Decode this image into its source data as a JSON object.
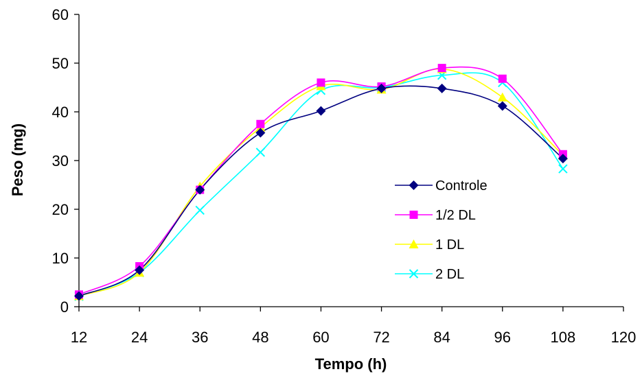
{
  "chart_data": {
    "type": "line",
    "title": "",
    "xlabel": "Tempo (h)",
    "ylabel": "Peso (mg)",
    "xlim": [
      12,
      120
    ],
    "ylim": [
      0,
      60
    ],
    "xticks": [
      12,
      24,
      36,
      48,
      60,
      72,
      84,
      96,
      108,
      120
    ],
    "yticks": [
      0,
      10,
      20,
      30,
      40,
      50,
      60
    ],
    "grid": false,
    "legend_position": "right",
    "x": [
      12,
      24,
      36,
      48,
      60,
      72,
      84,
      96,
      108
    ],
    "series": [
      {
        "name": "Controle",
        "color": "#000080",
        "marker": "diamond",
        "values": [
          2.2,
          7.5,
          24.0,
          35.7,
          40.2,
          44.8,
          44.8,
          41.2,
          30.4
        ]
      },
      {
        "name": "1/2 DL",
        "color": "#ff00ff",
        "marker": "square",
        "values": [
          2.5,
          8.3,
          24.0,
          37.5,
          46.0,
          45.2,
          49.0,
          46.8,
          31.3
        ]
      },
      {
        "name": "1 DL",
        "color": "#ffff00",
        "marker": "triangle",
        "values": [
          2.2,
          7.0,
          24.7,
          36.8,
          45.3,
          44.6,
          48.8,
          43.0,
          31.1
        ]
      },
      {
        "name": "2 DL",
        "color": "#00ffff",
        "marker": "x",
        "values": [
          2.1,
          7.0,
          19.8,
          31.7,
          44.4,
          45.0,
          47.5,
          46.0,
          28.3
        ]
      }
    ]
  }
}
